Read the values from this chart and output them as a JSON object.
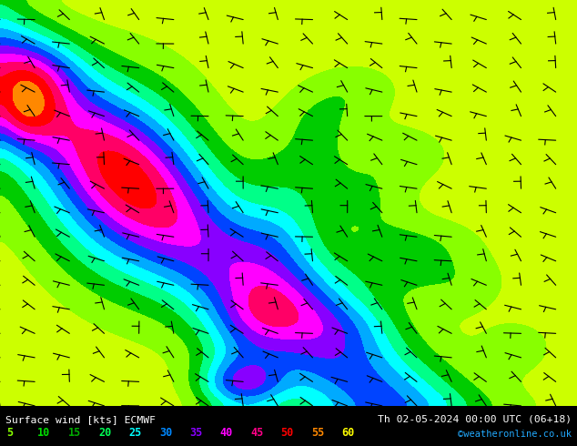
{
  "title_left": "Surface wind [kts] ECMWF",
  "title_right": "Th 02-05-2024 00:00 UTC (06+18)",
  "credit": "©weatheronline.co.uk",
  "legend_values": [
    5,
    10,
    15,
    20,
    25,
    30,
    35,
    40,
    45,
    50,
    55,
    60
  ],
  "legend_colors": [
    "#a0ff00",
    "#00e000",
    "#00bb00",
    "#00dd00",
    "#00ffff",
    "#00aaff",
    "#0055ff",
    "#aa00ff",
    "#ff00ff",
    "#ff0066",
    "#ff0000",
    "#ff8800"
  ],
  "figsize": [
    6.34,
    4.9
  ],
  "dpi": 100,
  "wind_color_levels": [
    0,
    5,
    10,
    15,
    20,
    25,
    30,
    35,
    40,
    45,
    50,
    55,
    60,
    200
  ],
  "wind_colors": [
    "#ffff00",
    "#ccff00",
    "#88ff00",
    "#00cc00",
    "#00ff88",
    "#00ffff",
    "#00aaff",
    "#0044ff",
    "#8800ff",
    "#ff00ff",
    "#ff0066",
    "#ff0000",
    "#ff8800"
  ],
  "map_bg": "#ffff00",
  "bottom_bg": "#000000",
  "top_border_color": "#00cc00",
  "seed_wind": 42,
  "seed_dir": 7
}
